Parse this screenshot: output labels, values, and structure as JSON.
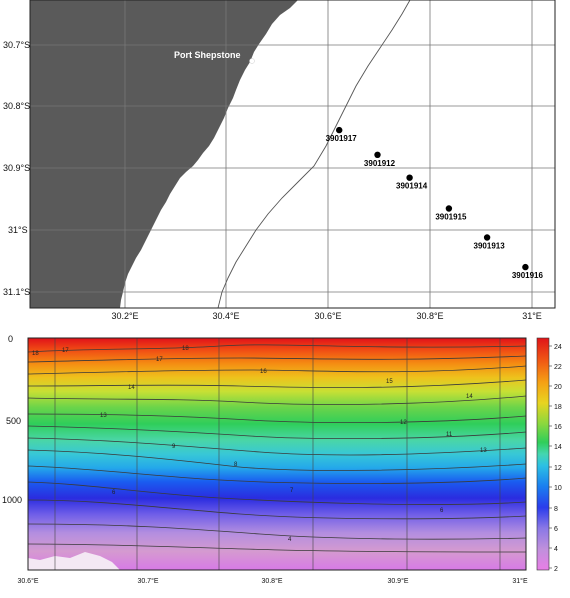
{
  "map": {
    "place_label": "Port Shepstone",
    "lat_labels": [
      "30.7°S",
      "30.8°S",
      "30.9°S",
      "31°S",
      "31.1°S"
    ],
    "lon_labels": [
      "30.2°E",
      "30.4°E",
      "30.6°E",
      "30.8°E",
      "31°E"
    ],
    "stations": [
      {
        "id": "3901917",
        "lon": 30.62,
        "lat": 30.838
      },
      {
        "id": "3901912",
        "lon": 30.695,
        "lat": 30.878
      },
      {
        "id": "3901914",
        "lon": 30.758,
        "lat": 30.915
      },
      {
        "id": "3901915",
        "lon": 30.835,
        "lat": 30.965
      },
      {
        "id": "3901913",
        "lon": 30.91,
        "lat": 31.012
      },
      {
        "id": "3901916",
        "lon": 30.985,
        "lat": 31.06
      }
    ],
    "colors": {
      "land": "#5a5a5a",
      "sea": "#ffffff",
      "grid": "#777777"
    }
  },
  "section": {
    "y_ticks": [
      "0",
      "500",
      "1000"
    ],
    "x_ticks": [
      "30.6°E",
      "30.7°E",
      "30.8°E",
      "30.9°E",
      "31°E"
    ],
    "contour_labels": [
      "18",
      "17",
      "16",
      "15",
      "14",
      "13",
      "12",
      "11",
      "10",
      "9",
      "8",
      "7",
      "6",
      "5",
      "4"
    ]
  },
  "colorbar": {
    "ticks": [
      "24",
      "22",
      "20",
      "18",
      "16",
      "14",
      "12",
      "10",
      "8",
      "6",
      "4",
      "2"
    ]
  }
}
